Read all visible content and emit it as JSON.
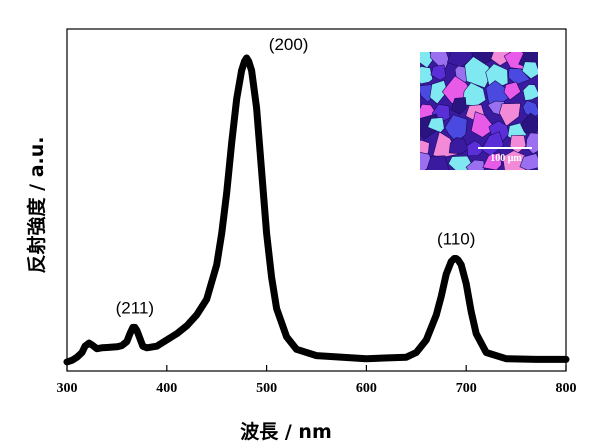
{
  "chart_data": {
    "type": "line",
    "xlabel": "波長 / nm",
    "ylabel": "反射強度 / a.u.",
    "xlim": [
      300,
      800
    ],
    "xticks": [
      300,
      400,
      500,
      600,
      700,
      800
    ],
    "ylim": [
      0,
      1.0
    ],
    "y_ticks_labeled": false,
    "grid": false,
    "series_color": "#000000",
    "peaks": [
      {
        "label": "(211)",
        "x": 368,
        "y": 0.12
      },
      {
        "label": "(200)",
        "x": 480,
        "y": 0.98
      },
      {
        "label": "(110)",
        "x": 690,
        "y": 0.34
      }
    ],
    "x": [
      300,
      305,
      310,
      315,
      318,
      322,
      326,
      330,
      335,
      340,
      350,
      355,
      360,
      363,
      366,
      368,
      370,
      373,
      376,
      380,
      390,
      400,
      410,
      420,
      430,
      440,
      450,
      455,
      460,
      465,
      470,
      475,
      478,
      480,
      482,
      485,
      490,
      495,
      500,
      505,
      510,
      520,
      530,
      550,
      600,
      640,
      650,
      660,
      670,
      675,
      680,
      685,
      688,
      690,
      692,
      695,
      700,
      705,
      710,
      720,
      740,
      770,
      800
    ],
    "values": [
      0.01,
      0.015,
      0.025,
      0.04,
      0.06,
      0.07,
      0.062,
      0.052,
      0.055,
      0.056,
      0.058,
      0.062,
      0.075,
      0.1,
      0.12,
      0.12,
      0.11,
      0.085,
      0.06,
      0.055,
      0.06,
      0.08,
      0.1,
      0.125,
      0.16,
      0.21,
      0.32,
      0.42,
      0.55,
      0.71,
      0.85,
      0.94,
      0.97,
      0.98,
      0.97,
      0.94,
      0.82,
      0.62,
      0.42,
      0.28,
      0.18,
      0.09,
      0.05,
      0.03,
      0.02,
      0.025,
      0.04,
      0.08,
      0.16,
      0.22,
      0.29,
      0.33,
      0.34,
      0.34,
      0.335,
      0.32,
      0.26,
      0.17,
      0.1,
      0.04,
      0.02,
      0.018,
      0.018
    ]
  },
  "inset": {
    "scale_bar_label": "100 μm",
    "colors": [
      "#5b2fd8",
      "#3a1a9e",
      "#e85ae8",
      "#7fe8f0",
      "#9a70f0",
      "#2a1580",
      "#f28ad8",
      "#4a4ae0"
    ]
  }
}
